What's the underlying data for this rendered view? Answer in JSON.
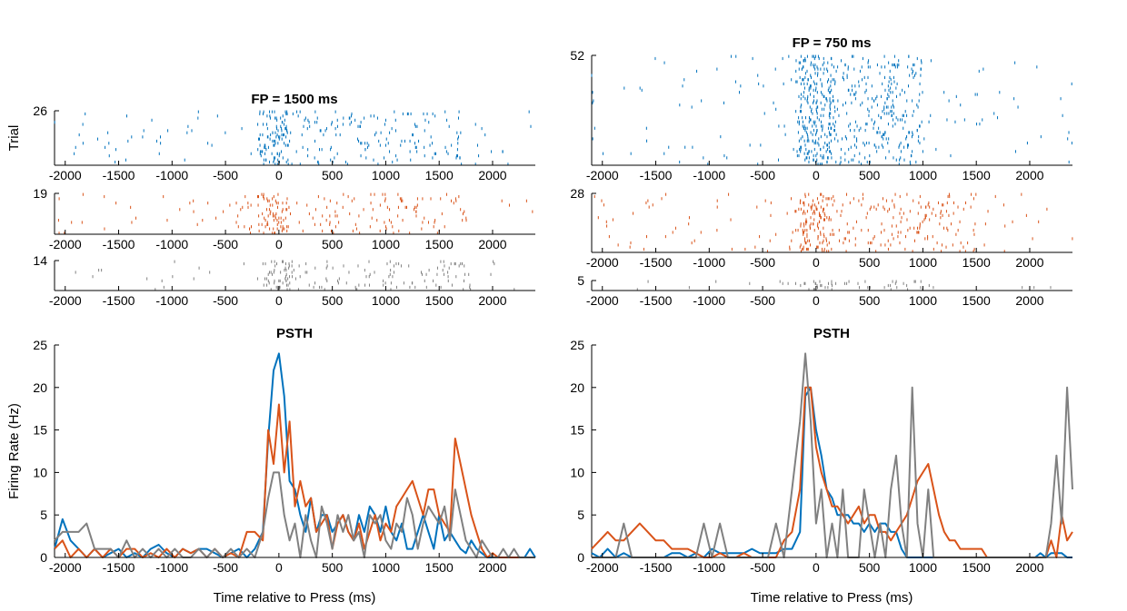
{
  "colors": {
    "blue": "#0072BD",
    "orange": "#D95319",
    "gray": "#808080",
    "axis": "#000000"
  },
  "left": {
    "raster_title": "FP = 1500 ms",
    "raster_ylabel": "Trial",
    "psth_title": "PSTH",
    "psth_ylabel": "Firing Rate (Hz)",
    "xlabel": "Time relative to Press (ms)"
  },
  "right": {
    "raster_title": "FP = 750 ms",
    "psth_title": "PSTH",
    "xlabel": "Time relative to Press (ms)"
  },
  "chart_data": [
    {
      "type": "raster",
      "panel": "left-raster",
      "title": "FP = 1500 ms",
      "ylabel": "Trial",
      "xlim": [
        -2100,
        2400
      ],
      "x_ticks": [
        -2000,
        -1500,
        -1000,
        -500,
        0,
        500,
        1000,
        1500,
        2000
      ],
      "groups": [
        {
          "color": "blue",
          "trials": 26,
          "dense_range": [
            -200,
            1700
          ],
          "peak": -50
        },
        {
          "color": "orange",
          "trials": 19,
          "dense_range": [
            -400,
            1900
          ],
          "peak": -50
        },
        {
          "color": "gray",
          "trials": 14,
          "dense_range": [
            -150,
            1800
          ],
          "peak": 0
        }
      ],
      "y_ticks": [
        26,
        19,
        14
      ]
    },
    {
      "type": "raster",
      "panel": "right-raster",
      "title": "FP = 750 ms",
      "xlim": [
        -2100,
        2400
      ],
      "x_ticks": [
        -2000,
        -1500,
        -1000,
        -500,
        0,
        500,
        1000,
        1500,
        2000
      ],
      "groups": [
        {
          "color": "blue",
          "trials": 52,
          "dense_range": [
            -200,
            1000
          ],
          "peak": 0
        },
        {
          "color": "orange",
          "trials": 28,
          "dense_range": [
            -300,
            1500
          ],
          "peak": 0
        },
        {
          "color": "gray",
          "trials": 5,
          "dense_range": [
            -100,
            1100
          ],
          "peak": 0
        }
      ],
      "y_ticks": [
        52,
        28,
        5
      ]
    },
    {
      "type": "line",
      "panel": "left-psth",
      "title": "PSTH",
      "xlabel": "Time relative to Press (ms)",
      "ylabel": "Firing Rate (Hz)",
      "xlim": [
        -2100,
        2400
      ],
      "ylim": [
        0,
        25
      ],
      "x_ticks": [
        -2000,
        -1500,
        -1000,
        -500,
        0,
        500,
        1000,
        1500,
        2000
      ],
      "y_ticks": [
        0,
        5,
        10,
        15,
        20,
        25
      ],
      "series": [
        {
          "color": "blue",
          "x": [
            -2100,
            -2025,
            -1950,
            -1875,
            -1800,
            -1725,
            -1650,
            -1575,
            -1500,
            -1425,
            -1350,
            -1275,
            -1200,
            -1125,
            -1050,
            -975,
            -900,
            -825,
            -750,
            -675,
            -600,
            -525,
            -450,
            -375,
            -300,
            -225,
            -150,
            -100,
            -50,
            0,
            50,
            100,
            150,
            200,
            250,
            300,
            350,
            400,
            450,
            500,
            550,
            600,
            650,
            700,
            750,
            800,
            850,
            900,
            950,
            1000,
            1050,
            1100,
            1150,
            1200,
            1250,
            1300,
            1350,
            1400,
            1450,
            1500,
            1550,
            1600,
            1650,
            1700,
            1750,
            1800,
            1850,
            1900,
            1950,
            2000,
            2050,
            2100,
            2150,
            2200,
            2250,
            2300,
            2350,
            2400
          ],
          "y": [
            1,
            4.5,
            2,
            1,
            0,
            1,
            0,
            0.5,
            1,
            0,
            0.5,
            0,
            1,
            1.5,
            0.5,
            0,
            1,
            0.5,
            1,
            1,
            0.5,
            0,
            0.5,
            1,
            0,
            1,
            3,
            14,
            22,
            24,
            19,
            9,
            8,
            5,
            3,
            7,
            3,
            5,
            5,
            3,
            4,
            5,
            3,
            2,
            5,
            3,
            6,
            5,
            3,
            6,
            3,
            2,
            4,
            1,
            1,
            3,
            5,
            3,
            1,
            5,
            2,
            3,
            2,
            1,
            0.5,
            2,
            1,
            0.5,
            0,
            0,
            0,
            0,
            0,
            0,
            0,
            0,
            1,
            0
          ]
        },
        {
          "color": "orange",
          "x": [
            -2100,
            -2025,
            -1950,
            -1875,
            -1800,
            -1725,
            -1650,
            -1575,
            -1500,
            -1425,
            -1350,
            -1275,
            -1200,
            -1125,
            -1050,
            -975,
            -900,
            -825,
            -750,
            -675,
            -600,
            -525,
            -450,
            -375,
            -300,
            -225,
            -150,
            -100,
            -50,
            0,
            50,
            100,
            150,
            200,
            250,
            300,
            350,
            400,
            450,
            500,
            550,
            600,
            650,
            700,
            750,
            800,
            850,
            900,
            950,
            1000,
            1050,
            1100,
            1150,
            1200,
            1250,
            1300,
            1350,
            1400,
            1450,
            1500,
            1550,
            1600,
            1650,
            1700,
            1750,
            1800,
            1850,
            1900,
            1950,
            2000,
            2050,
            2100,
            2150,
            2200,
            2250,
            2300,
            2350,
            2400
          ],
          "y": [
            1,
            2,
            0,
            1,
            0,
            1,
            0,
            1,
            0,
            1,
            1,
            0,
            0.5,
            0,
            1,
            0,
            1,
            0.5,
            1,
            0,
            1,
            0,
            0.5,
            0,
            3,
            3,
            2,
            15,
            11,
            18,
            10,
            16,
            6,
            9,
            6,
            7,
            3,
            4,
            5,
            1,
            4,
            5,
            3,
            2,
            4,
            1,
            3,
            5,
            2,
            4,
            3,
            6,
            7,
            8,
            9,
            7,
            5,
            8,
            8,
            5,
            4,
            3,
            14,
            11,
            8,
            5,
            3,
            1,
            0,
            0.5,
            0,
            0,
            0,
            0,
            0,
            0,
            0,
            0
          ]
        },
        {
          "color": "gray",
          "x": [
            -2100,
            -2025,
            -1950,
            -1875,
            -1800,
            -1725,
            -1650,
            -1575,
            -1500,
            -1425,
            -1350,
            -1275,
            -1200,
            -1125,
            -1050,
            -975,
            -900,
            -825,
            -750,
            -675,
            -600,
            -525,
            -450,
            -375,
            -300,
            -225,
            -150,
            -100,
            -50,
            0,
            50,
            100,
            150,
            200,
            250,
            300,
            350,
            400,
            450,
            500,
            550,
            600,
            650,
            700,
            750,
            800,
            850,
            900,
            950,
            1000,
            1050,
            1100,
            1150,
            1200,
            1250,
            1300,
            1350,
            1400,
            1450,
            1500,
            1550,
            1600,
            1650,
            1700,
            1750,
            1800,
            1850,
            1900,
            1950,
            2000,
            2050,
            2100,
            2150,
            2200,
            2250,
            2300,
            2350,
            2400
          ],
          "y": [
            2,
            3,
            3,
            3,
            4,
            1,
            1,
            1,
            0,
            2,
            0,
            1,
            0,
            1,
            0,
            1,
            0,
            0,
            1,
            0,
            1,
            0,
            1,
            0,
            1,
            0,
            3,
            7,
            10,
            10,
            5,
            2,
            4,
            0,
            5,
            2,
            0,
            6,
            4,
            1,
            5,
            3,
            5,
            2,
            3,
            0,
            5,
            4,
            5,
            2,
            1,
            4,
            3,
            7,
            5,
            1,
            4,
            6,
            5,
            4,
            6,
            2,
            8,
            5,
            2,
            1,
            0,
            2,
            1,
            0,
            0,
            1,
            0,
            1,
            0,
            0,
            0,
            0
          ]
        }
      ]
    },
    {
      "type": "line",
      "panel": "right-psth",
      "title": "PSTH",
      "xlabel": "Time relative to Press (ms)",
      "xlim": [
        -2100,
        2400
      ],
      "ylim": [
        0,
        25
      ],
      "x_ticks": [
        -2000,
        -1500,
        -1000,
        -500,
        0,
        500,
        1000,
        1500,
        2000
      ],
      "y_ticks": [
        0,
        5,
        10,
        15,
        20,
        25
      ],
      "series": [
        {
          "color": "blue",
          "x": [
            -2100,
            -2025,
            -1950,
            -1875,
            -1800,
            -1725,
            -1650,
            -1575,
            -1500,
            -1425,
            -1350,
            -1275,
            -1200,
            -1125,
            -1050,
            -975,
            -900,
            -825,
            -750,
            -675,
            -600,
            -525,
            -450,
            -375,
            -300,
            -225,
            -150,
            -100,
            -50,
            0,
            50,
            100,
            150,
            200,
            250,
            300,
            350,
            400,
            450,
            500,
            550,
            600,
            650,
            700,
            750,
            800,
            850,
            900,
            950,
            1000,
            1050,
            1100,
            1150,
            1200,
            1250,
            1300,
            1350,
            1400,
            1450,
            1500,
            1550,
            1600,
            1650,
            1700,
            1750,
            1800,
            1850,
            1900,
            1950,
            2000,
            2050,
            2100,
            2150,
            2200,
            2250,
            2300,
            2350,
            2400
          ],
          "y": [
            0.5,
            0,
            1,
            0,
            0.5,
            0,
            0,
            0,
            0,
            0,
            0.5,
            0.5,
            0,
            0.5,
            0,
            1,
            0.5,
            0.5,
            0.5,
            0.5,
            1,
            0.5,
            0.5,
            0.5,
            1,
            1,
            3,
            19,
            20,
            15,
            12,
            8,
            7,
            5,
            5,
            5,
            4,
            4,
            3,
            4,
            3,
            4,
            4,
            3,
            3,
            1,
            0,
            0,
            0,
            0,
            0,
            0,
            0,
            0,
            0,
            0,
            0,
            0,
            0,
            0,
            0,
            0,
            0,
            0,
            0,
            0,
            0,
            0,
            0,
            0,
            0,
            0.5,
            0,
            0.5,
            0.5,
            0.5,
            0,
            0
          ]
        },
        {
          "color": "orange",
          "x": [
            -2100,
            -2025,
            -1950,
            -1875,
            -1800,
            -1725,
            -1650,
            -1575,
            -1500,
            -1425,
            -1350,
            -1275,
            -1200,
            -1125,
            -1050,
            -975,
            -900,
            -825,
            -750,
            -675,
            -600,
            -525,
            -450,
            -375,
            -300,
            -225,
            -150,
            -100,
            -50,
            0,
            50,
            100,
            150,
            200,
            250,
            300,
            350,
            400,
            450,
            500,
            550,
            600,
            650,
            700,
            750,
            800,
            850,
            900,
            950,
            1000,
            1050,
            1100,
            1150,
            1200,
            1250,
            1300,
            1350,
            1400,
            1450,
            1500,
            1550,
            1600,
            1650,
            1700,
            1750,
            1800,
            1850,
            1900,
            1950,
            2000,
            2050,
            2100,
            2150,
            2200,
            2250,
            2300,
            2350,
            2400
          ],
          "y": [
            1,
            2,
            3,
            2,
            2,
            3,
            4,
            3,
            2,
            2,
            1,
            1,
            1,
            0.5,
            0,
            0,
            0.5,
            0,
            0,
            0.5,
            0,
            0,
            0,
            0,
            2,
            3,
            8,
            20,
            20,
            13,
            10,
            8,
            6,
            6,
            5,
            4,
            5,
            6,
            4,
            5,
            5,
            3,
            3,
            2,
            3,
            4,
            5,
            7,
            9,
            10,
            11,
            8,
            5,
            3,
            2,
            2,
            1,
            1,
            1,
            1,
            1,
            0,
            0,
            0,
            0,
            0,
            0,
            0,
            0,
            0,
            0,
            0,
            0,
            2,
            0,
            5,
            2,
            3
          ]
        },
        {
          "color": "gray",
          "x": [
            -2100,
            -2025,
            -1950,
            -1875,
            -1800,
            -1725,
            -1650,
            -1575,
            -1500,
            -1425,
            -1350,
            -1275,
            -1200,
            -1125,
            -1050,
            -975,
            -900,
            -825,
            -750,
            -675,
            -600,
            -525,
            -450,
            -375,
            -300,
            -225,
            -150,
            -100,
            -50,
            0,
            50,
            100,
            150,
            200,
            250,
            300,
            350,
            400,
            450,
            500,
            550,
            600,
            650,
            700,
            750,
            800,
            850,
            900,
            950,
            1000,
            1050,
            1100,
            1150,
            1200,
            1250,
            1300,
            1350,
            1400,
            1450,
            1500,
            1550,
            1600,
            1650,
            1700,
            1750,
            1800,
            1850,
            1900,
            1950,
            2000,
            2050,
            2100,
            2150,
            2200,
            2250,
            2300,
            2350,
            2400
          ],
          "y": [
            0,
            0,
            0,
            0,
            4,
            0,
            0,
            0,
            0,
            0,
            0,
            0,
            0,
            0,
            4,
            0,
            4,
            0,
            0,
            0,
            0,
            0,
            0,
            4,
            0,
            8,
            16,
            24,
            16,
            4,
            8,
            0,
            4,
            0,
            8,
            0,
            0,
            0,
            8,
            4,
            0,
            4,
            0,
            8,
            12,
            4,
            0,
            20,
            4,
            0,
            8,
            0,
            0,
            0,
            0,
            0,
            0,
            0,
            0,
            0,
            0,
            0,
            0,
            0,
            0,
            0,
            0,
            0,
            0,
            0,
            0,
            0,
            0,
            4,
            12,
            4,
            20,
            8
          ]
        }
      ]
    }
  ]
}
